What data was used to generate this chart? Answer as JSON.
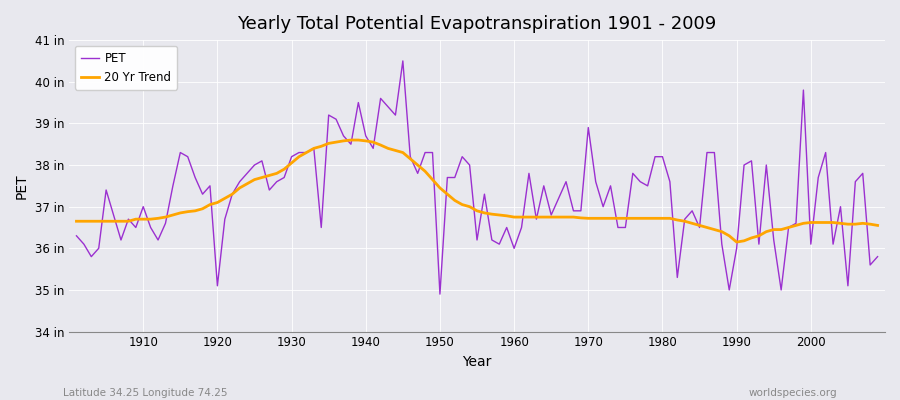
{
  "title": "Yearly Total Potential Evapotranspiration 1901 - 2009",
  "xlabel": "Year",
  "ylabel": "PET",
  "subtitle_left": "Latitude 34.25 Longitude 74.25",
  "subtitle_right": "worldspecies.org",
  "pet_color": "#9B30D0",
  "trend_color": "#FFA500",
  "bg_color": "#E8E8EE",
  "ylim": [
    34,
    41
  ],
  "yticks": [
    34,
    35,
    36,
    37,
    38,
    39,
    40,
    41
  ],
  "ytick_labels": [
    "34 in",
    "35 in",
    "36 in",
    "37 in",
    "38 in",
    "39 in",
    "40 in",
    "41 in"
  ],
  "years": [
    1901,
    1902,
    1903,
    1904,
    1905,
    1906,
    1907,
    1908,
    1909,
    1910,
    1911,
    1912,
    1913,
    1914,
    1915,
    1916,
    1917,
    1918,
    1919,
    1920,
    1921,
    1922,
    1923,
    1924,
    1925,
    1926,
    1927,
    1928,
    1929,
    1930,
    1931,
    1932,
    1933,
    1934,
    1935,
    1936,
    1937,
    1938,
    1939,
    1940,
    1941,
    1942,
    1943,
    1944,
    1945,
    1946,
    1947,
    1948,
    1949,
    1950,
    1951,
    1952,
    1953,
    1954,
    1955,
    1956,
    1957,
    1958,
    1959,
    1960,
    1961,
    1962,
    1963,
    1964,
    1965,
    1966,
    1967,
    1968,
    1969,
    1970,
    1971,
    1972,
    1973,
    1974,
    1975,
    1976,
    1977,
    1978,
    1979,
    1980,
    1981,
    1982,
    1983,
    1984,
    1985,
    1986,
    1987,
    1988,
    1989,
    1990,
    1991,
    1992,
    1993,
    1994,
    1995,
    1996,
    1997,
    1998,
    1999,
    2000,
    2001,
    2002,
    2003,
    2004,
    2005,
    2006,
    2007,
    2008,
    2009
  ],
  "pet_values": [
    36.3,
    36.1,
    35.8,
    36.0,
    37.4,
    36.8,
    36.2,
    36.7,
    36.5,
    37.0,
    36.5,
    36.2,
    36.6,
    37.5,
    38.3,
    38.2,
    37.7,
    37.3,
    37.5,
    35.1,
    36.7,
    37.3,
    37.6,
    37.8,
    38.0,
    38.1,
    37.4,
    37.6,
    37.7,
    38.2,
    38.3,
    38.3,
    38.4,
    36.5,
    39.2,
    39.1,
    38.7,
    38.5,
    39.5,
    38.7,
    38.4,
    39.6,
    39.4,
    39.2,
    40.5,
    38.2,
    37.8,
    38.3,
    38.3,
    34.9,
    37.7,
    37.7,
    38.2,
    38.0,
    36.2,
    37.3,
    36.2,
    36.1,
    36.5,
    36.0,
    36.5,
    37.8,
    36.7,
    37.5,
    36.8,
    37.2,
    37.6,
    36.9,
    36.9,
    38.9,
    37.6,
    37.0,
    37.5,
    36.5,
    36.5,
    37.8,
    37.6,
    37.5,
    38.2,
    38.2,
    37.6,
    35.3,
    36.7,
    36.9,
    36.5,
    38.3,
    38.3,
    36.1,
    35.0,
    36.0,
    38.0,
    38.1,
    36.1,
    38.0,
    36.2,
    35.0,
    36.5,
    36.6,
    39.8,
    36.1,
    37.7,
    38.3,
    36.1,
    37.0,
    35.1,
    37.6,
    37.8,
    35.6,
    35.8
  ],
  "trend_values": [
    36.65,
    36.65,
    36.65,
    36.65,
    36.65,
    36.65,
    36.65,
    36.65,
    36.7,
    36.7,
    36.7,
    36.72,
    36.75,
    36.8,
    36.85,
    36.88,
    36.9,
    36.95,
    37.05,
    37.1,
    37.2,
    37.3,
    37.45,
    37.55,
    37.65,
    37.7,
    37.75,
    37.8,
    37.9,
    38.05,
    38.2,
    38.3,
    38.4,
    38.45,
    38.52,
    38.55,
    38.58,
    38.6,
    38.6,
    38.58,
    38.55,
    38.48,
    38.4,
    38.35,
    38.3,
    38.15,
    38.0,
    37.85,
    37.65,
    37.45,
    37.3,
    37.15,
    37.05,
    37.0,
    36.9,
    36.85,
    36.82,
    36.8,
    36.78,
    36.75,
    36.75,
    36.75,
    36.75,
    36.75,
    36.75,
    36.75,
    36.75,
    36.75,
    36.73,
    36.72,
    36.72,
    36.72,
    36.72,
    36.72,
    36.72,
    36.72,
    36.72,
    36.72,
    36.72,
    36.72,
    36.72,
    36.68,
    36.65,
    36.6,
    36.55,
    36.5,
    36.45,
    36.4,
    36.3,
    36.15,
    36.18,
    36.25,
    36.3,
    36.4,
    36.45,
    36.45,
    36.5,
    36.55,
    36.6,
    36.62,
    36.62,
    36.62,
    36.62,
    36.6,
    36.58,
    36.58,
    36.6,
    36.58,
    36.55
  ]
}
